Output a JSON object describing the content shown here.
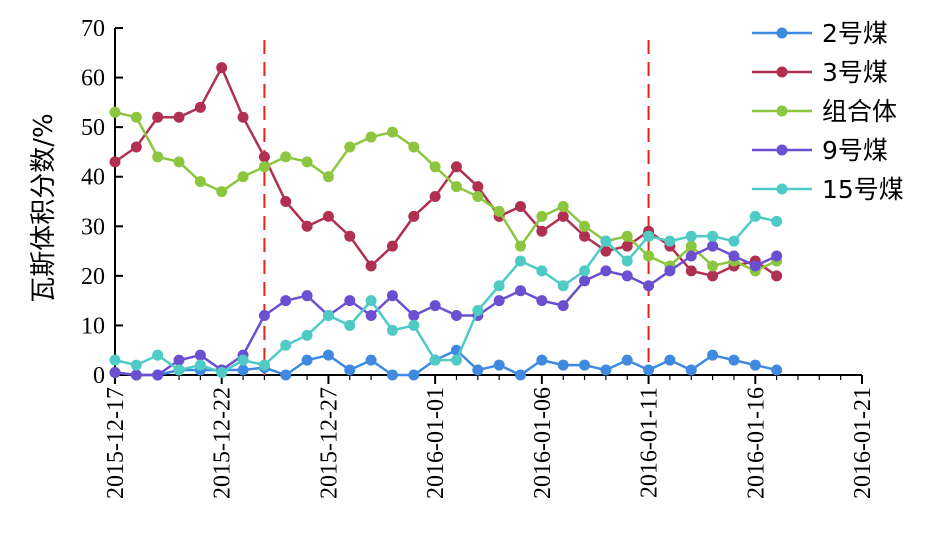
{
  "chart_data": {
    "type": "line",
    "title": "",
    "xlabel": "",
    "ylabel": "瓦斯体积分数/%",
    "x_tick_labels": [
      "2015-12-17",
      "2015-12-22",
      "2015-12-27",
      "2016-01-01",
      "2016-01-06",
      "2016-01-11",
      "2016-01-16",
      "2016-01-21"
    ],
    "xlim": [
      "2015-12-17",
      "2016-01-21"
    ],
    "ylim": [
      0,
      70
    ],
    "y_ticks": [
      0,
      10,
      20,
      30,
      40,
      50,
      60,
      70
    ],
    "grid": false,
    "legend_position": "top-right",
    "vlines": [
      "2015-12-24",
      "2016-01-11"
    ],
    "vline_color": "#e8201a",
    "x": [
      "2015-12-17",
      "2015-12-18",
      "2015-12-19",
      "2015-12-20",
      "2015-12-21",
      "2015-12-22",
      "2015-12-23",
      "2015-12-24",
      "2015-12-25",
      "2015-12-26",
      "2015-12-27",
      "2015-12-28",
      "2015-12-29",
      "2015-12-30",
      "2015-12-31",
      "2016-01-01",
      "2016-01-02",
      "2016-01-03",
      "2016-01-04",
      "2016-01-05",
      "2016-01-06",
      "2016-01-07",
      "2016-01-08",
      "2016-01-09",
      "2016-01-10",
      "2016-01-11",
      "2016-01-12",
      "2016-01-13",
      "2016-01-14",
      "2016-01-15",
      "2016-01-16",
      "2016-01-17",
      "2016-01-18",
      "2016-01-19"
    ],
    "series": [
      {
        "name": "2号煤",
        "color": "#3f8ae0",
        "values": [
          0.5,
          0,
          0,
          1,
          1,
          1,
          1,
          1.5,
          0,
          3,
          4,
          1,
          3,
          0,
          0,
          3,
          5,
          1,
          2,
          0,
          3,
          2,
          2,
          1,
          3,
          1,
          3,
          1,
          4,
          3,
          2,
          1,
          null,
          null
        ]
      },
      {
        "name": "3号煤",
        "color": "#b03050",
        "values": [
          43,
          46,
          52,
          52,
          54,
          62,
          52,
          44,
          35,
          30,
          32,
          28,
          22,
          26,
          32,
          36,
          42,
          38,
          32,
          34,
          29,
          32,
          28,
          25,
          26,
          29,
          26,
          21,
          20,
          22,
          23,
          20,
          null,
          null
        ]
      },
      {
        "name": "组合体",
        "color": "#8cc63f",
        "values": [
          53,
          52,
          44,
          43,
          39,
          37,
          40,
          42,
          44,
          43,
          40,
          46,
          48,
          49,
          46,
          42,
          38,
          36,
          33,
          26,
          32,
          34,
          30,
          27,
          28,
          24,
          22,
          26,
          22,
          23,
          21,
          23,
          null,
          null
        ]
      },
      {
        "name": "9号煤",
        "color": "#6a4fd0",
        "values": [
          0.5,
          0,
          0,
          3,
          4,
          1,
          4,
          12,
          15,
          16,
          12,
          15,
          12,
          16,
          12,
          14,
          12,
          12,
          15,
          17,
          15,
          14,
          19,
          21,
          20,
          18,
          21,
          24,
          26,
          24,
          22,
          24,
          null,
          null
        ]
      },
      {
        "name": "15号煤",
        "color": "#4fcac5",
        "values": [
          3,
          2,
          4,
          1,
          2,
          0.5,
          3,
          2,
          6,
          8,
          12,
          10,
          15,
          9,
          10,
          3,
          3,
          13,
          18,
          23,
          21,
          18,
          21,
          27,
          23,
          28,
          27,
          28,
          28,
          27,
          32,
          31,
          null,
          null
        ]
      }
    ]
  }
}
